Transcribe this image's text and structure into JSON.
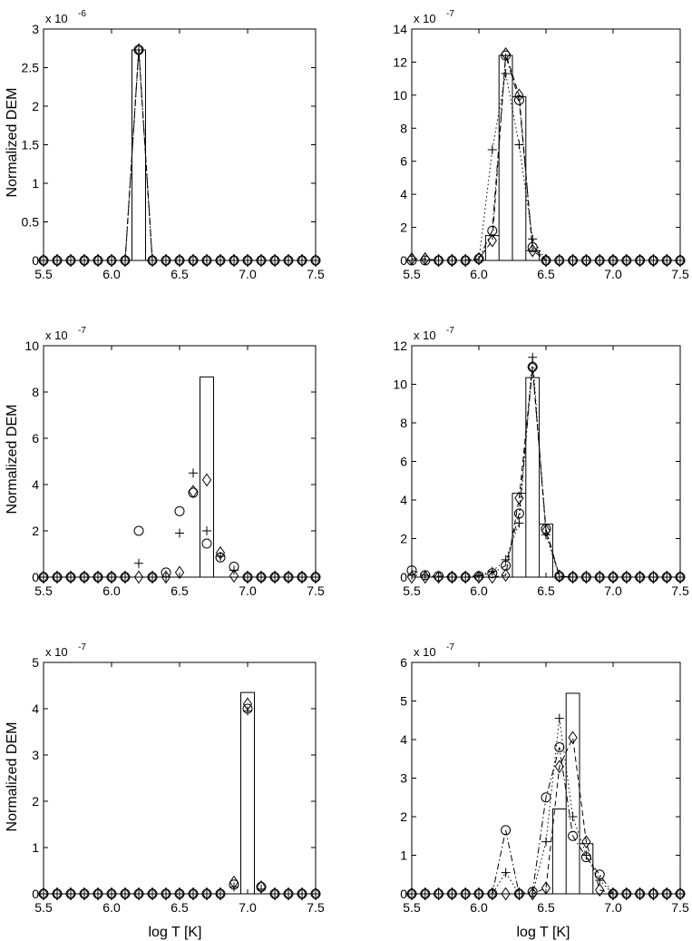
{
  "figure": {
    "ylabel": "Normalized DEM",
    "xlabel": "log T [K]"
  },
  "chart_data": [
    {
      "type": "line",
      "position": "row1-left",
      "exponent_label": "x 10",
      "exponent": "-6",
      "xlim": [
        5.5,
        7.5
      ],
      "ylim": [
        0,
        3
      ],
      "xticks": [
        "5.5",
        "6.0",
        "6.5",
        "7.0",
        "7.5"
      ],
      "yticks": [
        "0",
        "0.5",
        "1",
        "1.5",
        "2",
        "2.5",
        "3"
      ],
      "ylabel": "Normalized DEM",
      "xlabel": "",
      "x": [
        5.5,
        5.6,
        5.7,
        5.8,
        5.9,
        6.0,
        6.1,
        6.2,
        6.3,
        6.4,
        6.5,
        6.6,
        6.7,
        6.8,
        6.9,
        7.0,
        7.1,
        7.2,
        7.3,
        7.4,
        7.5
      ],
      "true_dem_bins": [
        0,
        0,
        0,
        0,
        0,
        0,
        0,
        2.73,
        0,
        0,
        0,
        0,
        0,
        0,
        0,
        0,
        0,
        0,
        0,
        0,
        0
      ],
      "series": [
        {
          "marker": "plus",
          "line": "dotted",
          "values": [
            0,
            0,
            0,
            0,
            0,
            0,
            0,
            2.73,
            0,
            0,
            0,
            0,
            0,
            0,
            0,
            0,
            0,
            0,
            0,
            0,
            0
          ]
        },
        {
          "marker": "circle",
          "line": "dashdot",
          "values": [
            0,
            0,
            0,
            0,
            0,
            0,
            0,
            2.73,
            0,
            0,
            0,
            0,
            0,
            0,
            0,
            0,
            0,
            0,
            0,
            0,
            0
          ]
        },
        {
          "marker": "diamond",
          "line": "dashed",
          "values": [
            0,
            0,
            0,
            0,
            0,
            0,
            0,
            2.73,
            0,
            0,
            0,
            0,
            0,
            0,
            0,
            0,
            0,
            0,
            0,
            0,
            0
          ]
        }
      ]
    },
    {
      "type": "line",
      "position": "row1-right",
      "exponent_label": "x 10",
      "exponent": "-7",
      "xlim": [
        5.5,
        7.5
      ],
      "ylim": [
        0,
        14
      ],
      "xticks": [
        "5.5",
        "6.0",
        "6.5",
        "7.0",
        "7.5"
      ],
      "yticks": [
        "0",
        "2",
        "4",
        "6",
        "8",
        "10",
        "12",
        "14"
      ],
      "ylabel": "",
      "xlabel": "",
      "x": [
        5.5,
        5.6,
        5.7,
        5.8,
        5.9,
        6.0,
        6.1,
        6.2,
        6.3,
        6.4,
        6.5,
        6.6,
        6.7,
        6.8,
        6.9,
        7.0,
        7.1,
        7.2,
        7.3,
        7.4,
        7.5
      ],
      "true_dem_bins": [
        0,
        0,
        0,
        0,
        0,
        0,
        1.5,
        12.4,
        9.9,
        0.6,
        0,
        0,
        0,
        0,
        0,
        0,
        0,
        0,
        0,
        0,
        0
      ],
      "series": [
        {
          "marker": "plus",
          "line": "dotted",
          "values": [
            0,
            0,
            0,
            0,
            0,
            0,
            6.7,
            11.3,
            7.0,
            1.3,
            0,
            0,
            0,
            0,
            0,
            0,
            0,
            0,
            0,
            0,
            0
          ]
        },
        {
          "marker": "circle",
          "line": "dashdot",
          "values": [
            0,
            0,
            0,
            0,
            0,
            0.1,
            1.8,
            12.4,
            9.7,
            0.8,
            0,
            0,
            0,
            0,
            0,
            0,
            0,
            0,
            0,
            0,
            0
          ]
        },
        {
          "marker": "diamond",
          "line": "dashed",
          "values": [
            0.1,
            0.1,
            0,
            0,
            0,
            0.1,
            1.2,
            12.5,
            10.0,
            0.6,
            0,
            0,
            0,
            0,
            0,
            0,
            0,
            0,
            0,
            0,
            0
          ]
        }
      ]
    },
    {
      "type": "scatter",
      "position": "row2-left",
      "exponent_label": "x 10",
      "exponent": "-7",
      "xlim": [
        5.5,
        7.5
      ],
      "ylim": [
        0,
        10
      ],
      "xticks": [
        "5.5",
        "6.0",
        "6.5",
        "7.0",
        "7.5"
      ],
      "yticks": [
        "0",
        "2",
        "4",
        "6",
        "8",
        "10"
      ],
      "ylabel": "Normalized DEM",
      "xlabel": "",
      "x": [
        5.5,
        5.6,
        5.7,
        5.8,
        5.9,
        6.0,
        6.1,
        6.2,
        6.3,
        6.4,
        6.5,
        6.6,
        6.7,
        6.8,
        6.9,
        7.0,
        7.1,
        7.2,
        7.3,
        7.4,
        7.5
      ],
      "true_dem_bins": [
        0,
        0,
        0,
        0,
        0,
        0,
        0,
        0,
        0,
        0,
        0,
        0,
        8.65,
        0,
        0,
        0,
        0,
        0,
        0,
        0,
        0
      ],
      "series": [
        {
          "marker": "plus",
          "line": "none",
          "values": [
            0,
            0,
            0,
            0,
            0,
            0,
            0,
            0.6,
            0,
            0,
            1.9,
            4.5,
            2.0,
            0.9,
            0.3,
            0,
            0,
            0,
            0,
            0,
            0
          ]
        },
        {
          "marker": "circle",
          "line": "none",
          "values": [
            0,
            0,
            0,
            0,
            0,
            0,
            0,
            2.0,
            0,
            0.2,
            2.85,
            3.65,
            1.45,
            0.85,
            0.45,
            0,
            0,
            0,
            0,
            0,
            0
          ]
        },
        {
          "marker": "diamond",
          "line": "none",
          "values": [
            0,
            0,
            0,
            0,
            0,
            0,
            0,
            0,
            0,
            0,
            0.2,
            3.7,
            4.2,
            1.05,
            0.05,
            0,
            0,
            0,
            0,
            0,
            0
          ]
        }
      ]
    },
    {
      "type": "line",
      "position": "row2-right",
      "exponent_label": "x 10",
      "exponent": "-7",
      "xlim": [
        5.5,
        7.5
      ],
      "ylim": [
        0,
        12
      ],
      "xticks": [
        "5.5",
        "6.0",
        "6.5",
        "7.0",
        "7.5"
      ],
      "yticks": [
        "0",
        "2",
        "4",
        "6",
        "8",
        "10",
        "12"
      ],
      "ylabel": "",
      "xlabel": "",
      "x": [
        5.5,
        5.6,
        5.7,
        5.8,
        5.9,
        6.0,
        6.1,
        6.2,
        6.3,
        6.4,
        6.5,
        6.6,
        6.7,
        6.8,
        6.9,
        7.0,
        7.1,
        7.2,
        7.3,
        7.4,
        7.5
      ],
      "true_dem_bins": [
        0,
        0,
        0,
        0,
        0,
        0,
        0,
        0,
        4.35,
        10.35,
        2.75,
        0,
        0,
        0,
        0,
        0,
        0,
        0,
        0,
        0,
        0
      ],
      "series": [
        {
          "marker": "plus",
          "line": "dotted",
          "values": [
            0.1,
            0.1,
            0,
            0,
            0,
            0.1,
            0.3,
            0.9,
            2.8,
            11.4,
            2.2,
            0,
            0,
            0,
            0,
            0,
            0,
            0,
            0,
            0,
            0
          ]
        },
        {
          "marker": "circle",
          "line": "dashdot",
          "values": [
            0.35,
            0.1,
            0.05,
            0,
            0,
            0.05,
            0.2,
            0.6,
            3.3,
            10.9,
            2.5,
            0.05,
            0,
            0,
            0,
            0,
            0,
            0,
            0,
            0,
            0
          ]
        },
        {
          "marker": "diamond",
          "line": "dashed",
          "values": [
            0,
            0,
            0,
            0,
            0,
            0,
            0,
            0.1,
            4.1,
            10.9,
            2.4,
            0.05,
            0,
            0,
            0,
            0,
            0,
            0,
            0,
            0,
            0
          ]
        }
      ]
    },
    {
      "type": "scatter",
      "position": "row3-left",
      "exponent_label": "x 10",
      "exponent": "-7",
      "xlim": [
        5.5,
        7.5
      ],
      "ylim": [
        0,
        5
      ],
      "xticks": [
        "5.5",
        "6.0",
        "6.5",
        "7.0",
        "7.5"
      ],
      "yticks": [
        "0",
        "1",
        "2",
        "3",
        "4",
        "5"
      ],
      "ylabel": "Normalized DEM",
      "xlabel": "log T [K]",
      "x": [
        5.5,
        5.6,
        5.7,
        5.8,
        5.9,
        6.0,
        6.1,
        6.2,
        6.3,
        6.4,
        6.5,
        6.6,
        6.7,
        6.8,
        6.9,
        7.0,
        7.1,
        7.2,
        7.3,
        7.4,
        7.5
      ],
      "true_dem_bins": [
        0,
        0,
        0,
        0,
        0,
        0,
        0,
        0,
        0,
        0,
        0,
        0,
        0,
        0,
        0,
        4.35,
        0,
        0,
        0,
        0,
        0
      ],
      "series": [
        {
          "marker": "plus",
          "line": "none",
          "values": [
            0,
            0,
            0,
            0,
            0,
            0,
            0,
            0,
            0,
            0,
            0,
            0,
            0,
            0,
            0.15,
            3.95,
            0.1,
            0,
            0,
            0,
            0
          ]
        },
        {
          "marker": "circle",
          "line": "none",
          "values": [
            0,
            0,
            0,
            0,
            0,
            0,
            0,
            0,
            0,
            0,
            0,
            0,
            0,
            0,
            0.2,
            4.0,
            0.15,
            0,
            0,
            0,
            0
          ]
        },
        {
          "marker": "diamond",
          "line": "none",
          "values": [
            0,
            0,
            0,
            0,
            0,
            0,
            0,
            0,
            0,
            0,
            0,
            0,
            0,
            0,
            0.25,
            4.1,
            0.15,
            0,
            0,
            0,
            0
          ]
        }
      ]
    },
    {
      "type": "line",
      "position": "row3-right",
      "exponent_label": "x 10",
      "exponent": "-7",
      "xlim": [
        5.5,
        7.5
      ],
      "ylim": [
        0,
        6
      ],
      "xticks": [
        "5.5",
        "6.0",
        "6.5",
        "7.0",
        "7.5"
      ],
      "yticks": [
        "0",
        "1",
        "2",
        "3",
        "4",
        "5",
        "6"
      ],
      "ylabel": "",
      "xlabel": "log T [K]",
      "x": [
        5.5,
        5.6,
        5.7,
        5.8,
        5.9,
        6.0,
        6.1,
        6.2,
        6.3,
        6.4,
        6.5,
        6.6,
        6.7,
        6.8,
        6.9,
        7.0,
        7.1,
        7.2,
        7.3,
        7.4,
        7.5
      ],
      "true_dem_bins": [
        0,
        0,
        0,
        0,
        0,
        0,
        0,
        0,
        0,
        0,
        0,
        2.2,
        5.2,
        1.3,
        0,
        0,
        0,
        0,
        0,
        0,
        0
      ],
      "series": [
        {
          "marker": "plus",
          "line": "dotted",
          "values": [
            0,
            0,
            0,
            0,
            0,
            0,
            0,
            0.55,
            0,
            0,
            1.35,
            4.55,
            2.0,
            1.0,
            0.35,
            0,
            0,
            0,
            0,
            0,
            0
          ]
        },
        {
          "marker": "circle",
          "line": "dashdot",
          "values": [
            0,
            0,
            0,
            0,
            0,
            0,
            0,
            1.65,
            0,
            0.05,
            2.5,
            3.8,
            1.5,
            0.95,
            0.5,
            0,
            0,
            0,
            0,
            0,
            0
          ]
        },
        {
          "marker": "diamond",
          "line": "dashed",
          "values": [
            0,
            0,
            0,
            0,
            0,
            0,
            0,
            0,
            0,
            0,
            0.15,
            3.3,
            4.05,
            1.35,
            0.1,
            0,
            0,
            0,
            0,
            0,
            0
          ]
        }
      ]
    }
  ]
}
